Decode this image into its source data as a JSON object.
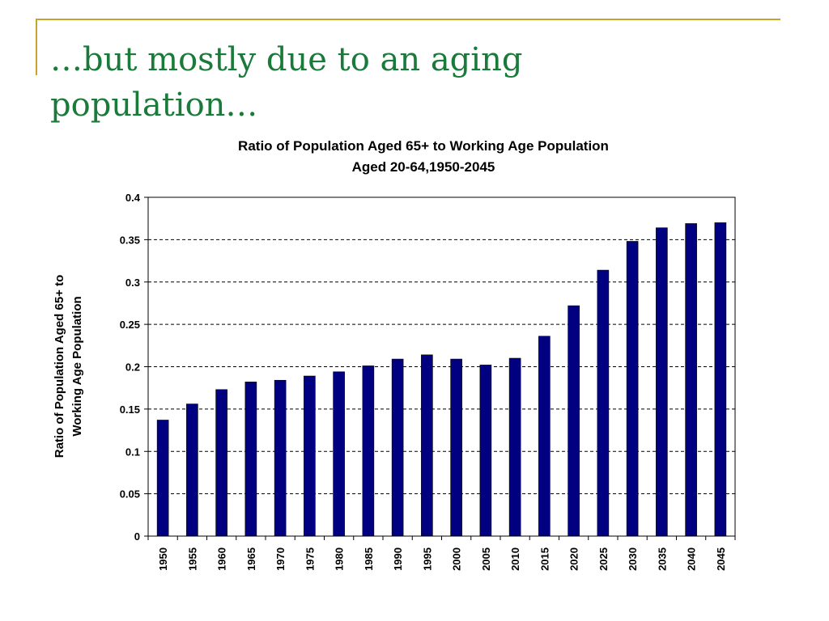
{
  "slide": {
    "title_line1": "…but mostly due to an aging",
    "title_line2": "population…",
    "accent_color": "#c9a227",
    "title_color": "#1a7a3a"
  },
  "chart_data": {
    "type": "bar",
    "title_line1": "Ratio of Population Aged 65+ to Working Age Population",
    "title_line2": "Aged 20-64,1950-2045",
    "ylabel_line1": "Ratio of Population Aged 65+ to",
    "ylabel_line2": "Working Age Population",
    "xlabel": "",
    "categories": [
      "1950",
      "1955",
      "1960",
      "1965",
      "1970",
      "1975",
      "1980",
      "1985",
      "1990",
      "1995",
      "2000",
      "2005",
      "2010",
      "2015",
      "2020",
      "2025",
      "2030",
      "2035",
      "2040",
      "2045"
    ],
    "values": [
      0.137,
      0.156,
      0.173,
      0.182,
      0.184,
      0.189,
      0.194,
      0.201,
      0.209,
      0.214,
      0.209,
      0.202,
      0.21,
      0.236,
      0.272,
      0.314,
      0.348,
      0.364,
      0.369,
      0.37
    ],
    "ylim": [
      0,
      0.4
    ],
    "yticks": [
      "0",
      "0.05",
      "0.1",
      "0.15",
      "0.2",
      "0.25",
      "0.3",
      "0.35",
      "0.4"
    ],
    "grid": "horizontal dashed",
    "bar_color": "#000080",
    "legend": "none"
  }
}
